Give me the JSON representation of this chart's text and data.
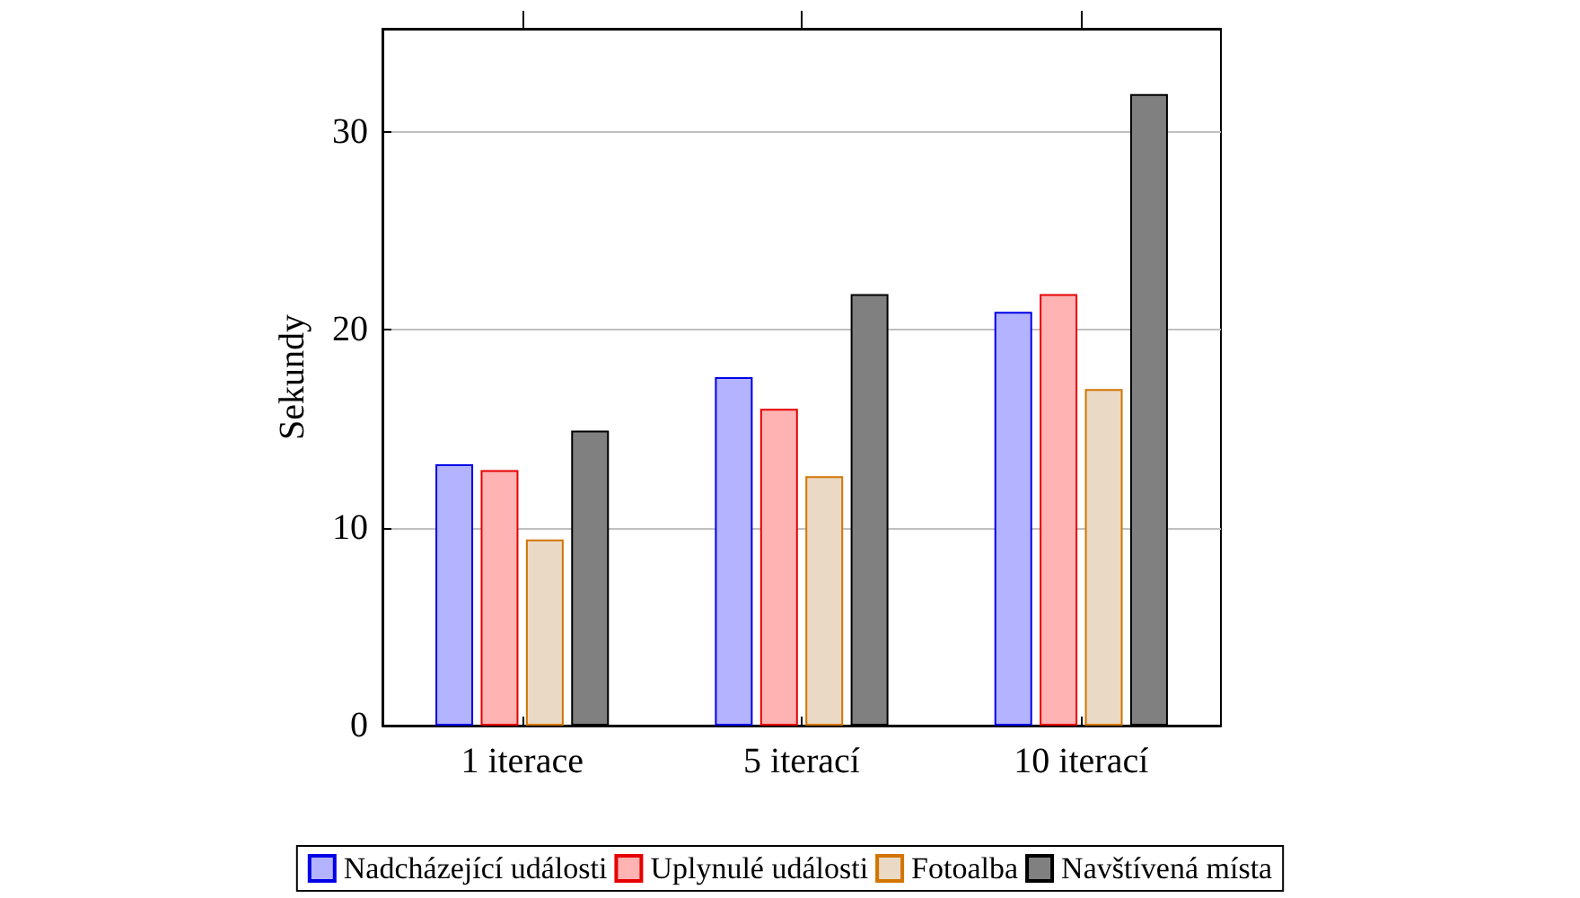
{
  "chart_data": {
    "type": "bar",
    "ylabel": "Sekundy",
    "categories": [
      "1 iterace",
      "5 iterací",
      "10 iterací"
    ],
    "series": [
      {
        "name": "Nadcházející události",
        "color": "#b3b3ff",
        "values": [
          13.2,
          17.6,
          20.9
        ]
      },
      {
        "name": "Uplynulé události",
        "color": "#ffb3b3",
        "values": [
          12.9,
          16.0,
          21.8
        ]
      },
      {
        "name": "Fotoalba",
        "color": "#ead9c4",
        "values": [
          9.4,
          12.6,
          17.0
        ]
      },
      {
        "name": "Navštívená místa",
        "color": "#808080",
        "values": [
          14.9,
          21.8,
          31.9
        ]
      }
    ],
    "ylim": [
      0,
      35.2
    ],
    "yticks": [
      0,
      10,
      20,
      30
    ],
    "grid": "y",
    "legend": "bottom"
  }
}
